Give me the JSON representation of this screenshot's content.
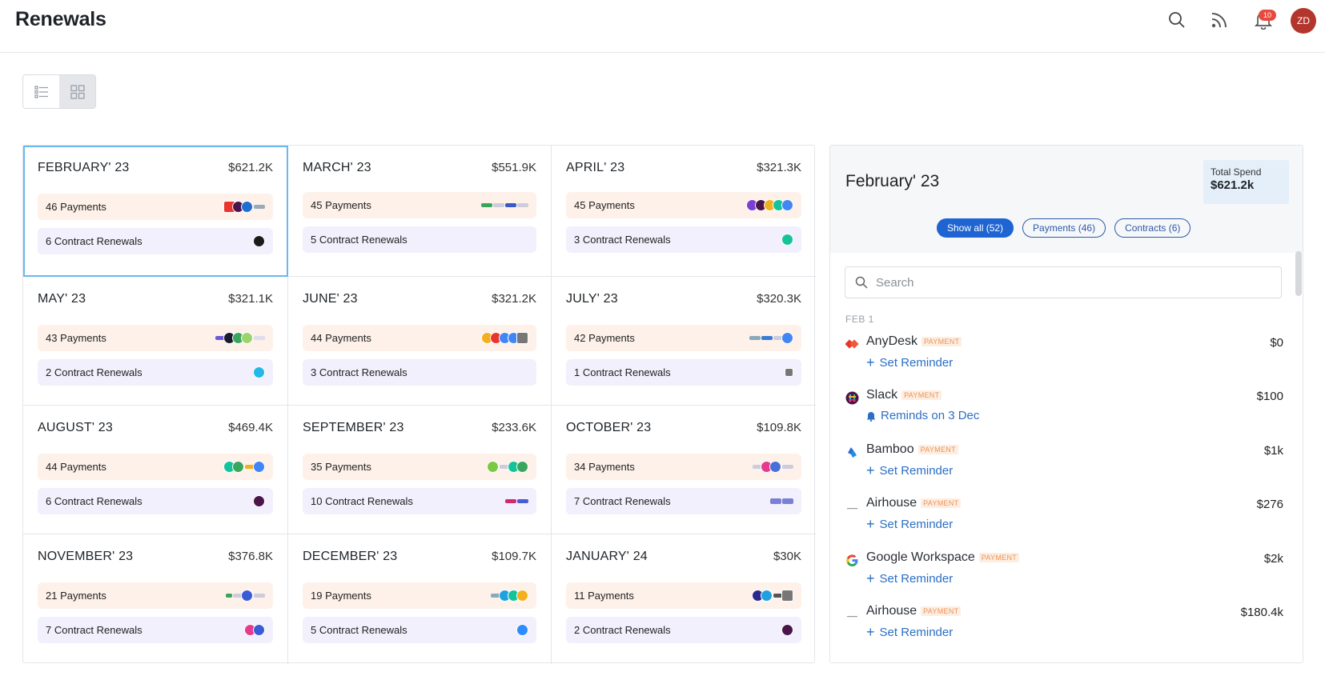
{
  "header": {
    "title": "Renewals",
    "notification_count": "10",
    "avatar_initials": "ZD"
  },
  "months": [
    {
      "name": "FEBRUARY' 23",
      "amount": "$621.2K",
      "payments": "46 Payments",
      "contracts": "6 Contract Renewals",
      "selected": true
    },
    {
      "name": "MARCH' 23",
      "amount": "$551.9K",
      "payments": "45 Payments",
      "contracts": "5 Contract Renewals"
    },
    {
      "name": "APRIL' 23",
      "amount": "$321.3K",
      "payments": "45 Payments",
      "contracts": "3 Contract Renewals"
    },
    {
      "name": "MAY' 23",
      "amount": "$321.1K",
      "payments": "43 Payments",
      "contracts": "2 Contract Renewals"
    },
    {
      "name": "JUNE' 23",
      "amount": "$321.2K",
      "payments": "44 Payments",
      "contracts": "3 Contract Renewals"
    },
    {
      "name": "JULY' 23",
      "amount": "$320.3K",
      "payments": "42 Payments",
      "contracts": "1 Contract Renewals"
    },
    {
      "name": "AUGUST' 23",
      "amount": "$469.4K",
      "payments": "44 Payments",
      "contracts": "6 Contract Renewals"
    },
    {
      "name": "SEPTEMBER' 23",
      "amount": "$233.6K",
      "payments": "35 Payments",
      "contracts": "10 Contract Renewals"
    },
    {
      "name": "OCTOBER' 23",
      "amount": "$109.8K",
      "payments": "34 Payments",
      "contracts": "7 Contract Renewals"
    },
    {
      "name": "NOVEMBER' 23",
      "amount": "$376.8K",
      "payments": "21 Payments",
      "contracts": "7 Contract Renewals"
    },
    {
      "name": "DECEMBER' 23",
      "amount": "$109.7K",
      "payments": "19 Payments",
      "contracts": "5 Contract Renewals"
    },
    {
      "name": "JANUARY' 24",
      "amount": "$30K",
      "payments": "11 Payments",
      "contracts": "2 Contract Renewals"
    }
  ],
  "panel": {
    "title": "February' 23",
    "total_spend_label": "Total Spend",
    "total_spend_value": "$621.2k",
    "filters": [
      "Show all (52)",
      "Payments (46)",
      "Contracts (6)"
    ],
    "search_placeholder": "Search",
    "date_label": "FEB 1",
    "items": [
      {
        "name": "AnyDesk",
        "tag": "PAYMENT",
        "amount": "$0",
        "action": "Set Reminder"
      },
      {
        "name": "Slack",
        "tag": "PAYMENT",
        "amount": "$100",
        "action": "Reminds on 3 Dec"
      },
      {
        "name": "Bamboo",
        "tag": "PAYMENT",
        "amount": "$1k",
        "action": "Set Reminder"
      },
      {
        "name": "Airhouse",
        "tag": "PAYMENT",
        "amount": "$276",
        "action": "Set Reminder"
      },
      {
        "name": "Google Workspace",
        "tag": "PAYMENT",
        "amount": "$2k",
        "action": "Set Reminder"
      },
      {
        "name": "Airhouse",
        "tag": "PAYMENT",
        "amount": "$180.4k",
        "action": "Set Reminder"
      }
    ]
  },
  "colors": {
    "accent": "#1e64d2",
    "payment_pill": "#fdf1ea",
    "contract_pill": "#f1f0fc",
    "selected_border": "#6ab8ee",
    "tag_text": "#f0924f",
    "link": "#2b6fc4"
  }
}
